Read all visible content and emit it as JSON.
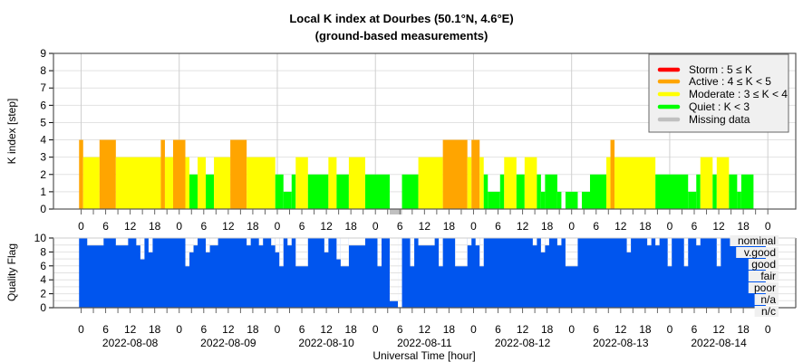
{
  "chart_data": [
    {
      "type": "bar",
      "title": "Local K index at Dourbes (50.1°N, 4.6°E)",
      "subtitle": "(ground-based measurements)",
      "ylabel": "K index [step]",
      "xlabel": "",
      "ylim": [
        0,
        9
      ],
      "yticks": [
        "0",
        "1",
        "2",
        "3",
        "4",
        "5",
        "6",
        "7",
        "8",
        "9"
      ],
      "xlim_hours": [
        0,
        168
      ],
      "x_tick_labels": [
        "0",
        "6",
        "12",
        "18"
      ],
      "grid": true,
      "legend_position": "top-right",
      "legend": [
        {
          "label": "Storm : 5 ≤ K",
          "color": "#ff0000"
        },
        {
          "label": "Active : 4 ≤ K < 5",
          "color": "#ffa500"
        },
        {
          "label": "Moderate : 3 ≤ K < 4",
          "color": "#ffff00"
        },
        {
          "label": "Quiet : K < 3",
          "color": "#00ff00"
        },
        {
          "label": "Missing data",
          "color": "#c0c0c0"
        }
      ],
      "segments_hours_k": [
        [
          -0.5,
          0.5,
          4
        ],
        [
          0.5,
          4.5,
          3
        ],
        [
          4.5,
          8.5,
          4
        ],
        [
          8.5,
          19.5,
          3
        ],
        [
          19.5,
          20.5,
          4
        ],
        [
          20.5,
          22.5,
          3
        ],
        [
          22.5,
          25.5,
          4
        ],
        [
          25.5,
          26.5,
          3
        ],
        [
          26.5,
          28.5,
          2
        ],
        [
          28.5,
          30.5,
          3
        ],
        [
          30.5,
          32.5,
          2
        ],
        [
          32.5,
          36.5,
          3
        ],
        [
          36.5,
          40.5,
          4
        ],
        [
          40.5,
          47.5,
          3
        ],
        [
          47.5,
          49.5,
          2
        ],
        [
          49.5,
          51.5,
          1
        ],
        [
          51.5,
          52.5,
          2
        ],
        [
          52.5,
          55.5,
          3
        ],
        [
          55.5,
          60.5,
          2
        ],
        [
          60.5,
          62.5,
          3
        ],
        [
          62.5,
          65.5,
          2
        ],
        [
          65.5,
          69.5,
          3
        ],
        [
          69.5,
          75.5,
          2
        ],
        [
          75.5,
          78.5,
          null
        ],
        [
          78.5,
          82.5,
          2
        ],
        [
          82.5,
          88.5,
          3
        ],
        [
          88.5,
          94.5,
          4
        ],
        [
          94.5,
          95.5,
          3
        ],
        [
          95.5,
          97.5,
          4
        ],
        [
          97.5,
          98.5,
          3
        ],
        [
          98.5,
          99.5,
          2
        ],
        [
          99.5,
          102.5,
          1
        ],
        [
          102.5,
          103.5,
          2
        ],
        [
          103.5,
          106.5,
          3
        ],
        [
          106.5,
          108.5,
          2
        ],
        [
          108.5,
          111.5,
          3
        ],
        [
          111.5,
          112.5,
          2
        ],
        [
          112.5,
          113.5,
          1
        ],
        [
          113.5,
          116.5,
          2
        ],
        [
          116.5,
          117.5,
          1
        ],
        [
          117.5,
          118.5,
          0
        ],
        [
          118.5,
          121.5,
          1
        ],
        [
          121.5,
          122.5,
          0
        ],
        [
          122.5,
          124.5,
          1
        ],
        [
          124.5,
          128.5,
          2
        ],
        [
          128.5,
          129.5,
          3
        ],
        [
          129.5,
          130.5,
          4
        ],
        [
          130.5,
          140.5,
          3
        ],
        [
          140.5,
          148.5,
          2
        ],
        [
          148.5,
          150.5,
          1
        ],
        [
          150.5,
          151.5,
          2
        ],
        [
          151.5,
          154.5,
          3
        ],
        [
          154.5,
          155.5,
          2
        ],
        [
          155.5,
          158.5,
          3
        ],
        [
          158.5,
          160.5,
          2
        ],
        [
          160.5,
          161.5,
          1
        ],
        [
          161.5,
          164.5,
          2
        ]
      ]
    },
    {
      "type": "bar",
      "ylabel": "Quality Flag",
      "xlabel": "Universal Time [hour]",
      "ylim": [
        0,
        10
      ],
      "yticks": [
        "0",
        "2",
        "4",
        "6",
        "8",
        "10"
      ],
      "x_tick_labels": [
        "0",
        "6",
        "12",
        "18"
      ],
      "dates": [
        "2022-08-08",
        "2022-08-09",
        "2022-08-10",
        "2022-08-11",
        "2022-08-12",
        "2022-08-13",
        "2022-08-14"
      ],
      "levels": [
        "nominal",
        "v.good",
        "good",
        "fair",
        "poor",
        "n/a",
        "n/c"
      ],
      "color": "#0055ee",
      "default_value": 10,
      "range_hours": [
        -0.5,
        167.5
      ],
      "deviations_hours_value": [
        [
          1.5,
          5.5,
          9
        ],
        [
          8.5,
          11.5,
          9
        ],
        [
          13.5,
          14.5,
          9
        ],
        [
          14.5,
          15.5,
          7
        ],
        [
          16.5,
          17.5,
          8
        ],
        [
          25.5,
          26.5,
          6
        ],
        [
          26.5,
          27.5,
          8
        ],
        [
          27.5,
          28.5,
          9
        ],
        [
          30.5,
          31.5,
          8
        ],
        [
          31.5,
          33.5,
          9
        ],
        [
          40.5,
          41.5,
          9
        ],
        [
          43.5,
          44.5,
          9
        ],
        [
          46.5,
          47.5,
          9
        ],
        [
          47.5,
          48.5,
          8
        ],
        [
          48.5,
          49.5,
          6
        ],
        [
          50.5,
          51.5,
          9
        ],
        [
          52.5,
          55.5,
          6
        ],
        [
          59.5,
          60.5,
          8
        ],
        [
          62.5,
          63.5,
          7
        ],
        [
          63.5,
          65.5,
          6
        ],
        [
          65.5,
          69.5,
          9
        ],
        [
          72.5,
          73.5,
          6
        ],
        [
          75.5,
          77.5,
          1
        ],
        [
          77.5,
          78.5,
          0
        ],
        [
          80.5,
          81.5,
          6
        ],
        [
          82.5,
          86.5,
          9
        ],
        [
          87.5,
          88.5,
          6
        ],
        [
          91.5,
          94.5,
          6
        ],
        [
          94.5,
          95.5,
          9
        ],
        [
          96.5,
          97.5,
          9
        ],
        [
          97.5,
          98.5,
          6
        ],
        [
          110.5,
          111.5,
          9
        ],
        [
          112.5,
          113.5,
          8
        ],
        [
          113.5,
          114.5,
          9
        ],
        [
          116.5,
          117.5,
          9
        ],
        [
          118.5,
          121.5,
          6
        ],
        [
          133.5,
          134.5,
          8
        ],
        [
          138.5,
          139.5,
          9
        ],
        [
          140.5,
          141.5,
          9
        ],
        [
          143.5,
          144.5,
          6
        ],
        [
          147.5,
          148.5,
          6
        ],
        [
          150.5,
          151.5,
          9
        ],
        [
          155.5,
          156.5,
          6
        ],
        [
          159.5,
          160.5,
          9
        ]
      ]
    }
  ]
}
